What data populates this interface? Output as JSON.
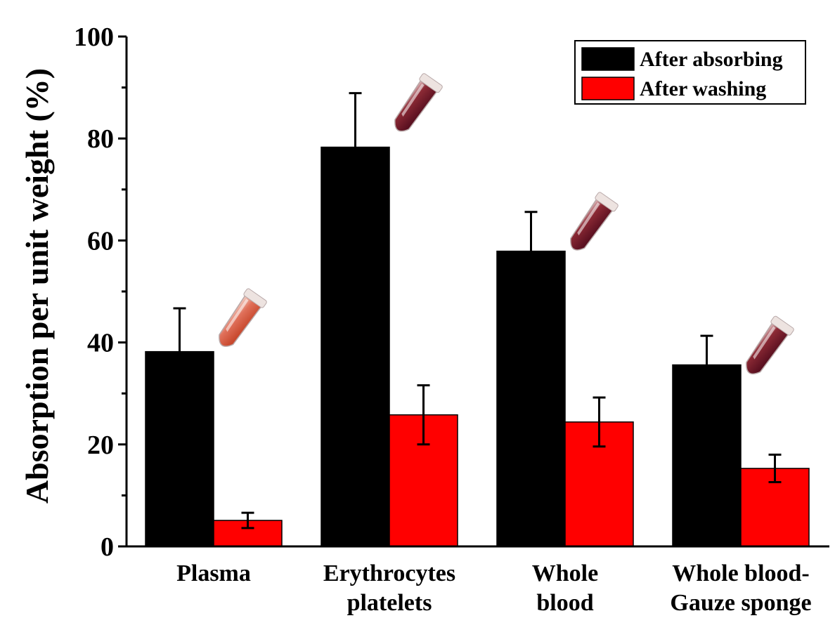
{
  "chart_data": {
    "type": "bar",
    "ylabel": "Absorption per unit weight (%)",
    "xlabel": "",
    "ylim": [
      0,
      100
    ],
    "yticks": [
      0,
      20,
      40,
      60,
      80,
      100
    ],
    "categories": [
      [
        "Plasma"
      ],
      [
        "Erythrocytes",
        "platelets"
      ],
      [
        "Whole",
        "blood"
      ],
      [
        "Whole blood-",
        "Gauze sponge"
      ]
    ],
    "series": [
      {
        "name": "After absorbing",
        "color": "#000000",
        "values": [
          38.2,
          78.3,
          57.9,
          35.6
        ],
        "errors": [
          8.5,
          10.6,
          7.7,
          5.7
        ]
      },
      {
        "name": "After washing",
        "color": "#ff0000",
        "values": [
          5.1,
          25.8,
          24.4,
          15.3
        ],
        "errors": [
          1.5,
          5.8,
          4.8,
          2.7
        ]
      }
    ],
    "legend_position": "top-right",
    "tube_images": [
      "plasma-tube-icon",
      "erythrocytes-tube-icon",
      "whole-blood-tube-icon",
      "gauze-blood-tube-icon"
    ]
  }
}
